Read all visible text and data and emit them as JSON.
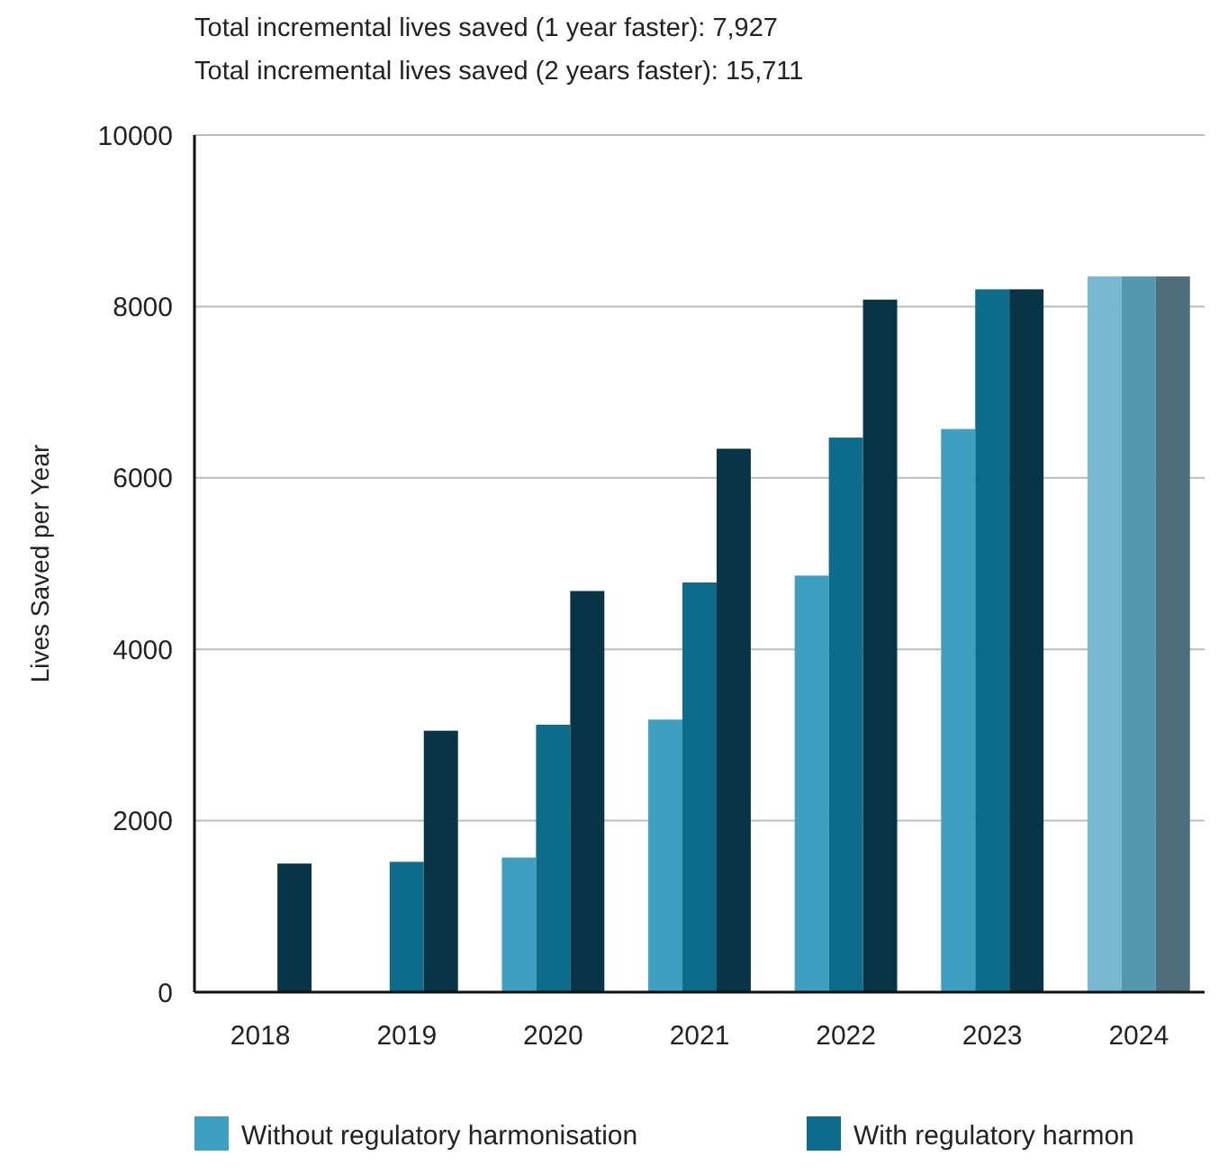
{
  "chart_data": {
    "type": "bar",
    "title": "Total incremental lives saved (1 year faster): 7,927",
    "subtitle": "Total incremental lives saved (2 years faster): 15,711",
    "ylabel": "Lives Saved per Year",
    "categories": [
      "2018",
      "2019",
      "2020",
      "2021",
      "2022",
      "2023",
      "2024"
    ],
    "series": [
      {
        "name": "Without regulatory harmonisation",
        "color": "#3f9fc0",
        "colors": [
          null,
          null,
          "#3f9fc0",
          "#3f9fc0",
          "#3f9fc0",
          "#3f9fc0",
          "#79b8d3"
        ],
        "values": [
          null,
          null,
          1570,
          3180,
          4860,
          6570,
          8350
        ]
      },
      {
        "name": "With regulatory harmon",
        "color": "#0d6b8b",
        "colors": [
          null,
          "#0d6b8b",
          "#0d6b8b",
          "#0d6b8b",
          "#0d6b8b",
          "#0d6b8b",
          "#5597b0"
        ],
        "values": [
          null,
          1520,
          3120,
          4780,
          6470,
          8200,
          8350
        ]
      },
      {
        "colors": [
          "#073547",
          "#073547",
          "#073547",
          "#073547",
          "#073547",
          "#073547",
          "#4e6e7b"
        ],
        "values": [
          1500,
          3050,
          4680,
          6340,
          8080,
          8200,
          8350
        ]
      }
    ],
    "ylim": [
      0,
      10000
    ],
    "yticks": [
      0,
      2000,
      4000,
      6000,
      8000,
      10000
    ],
    "grid": "y",
    "legend": "bottom"
  }
}
